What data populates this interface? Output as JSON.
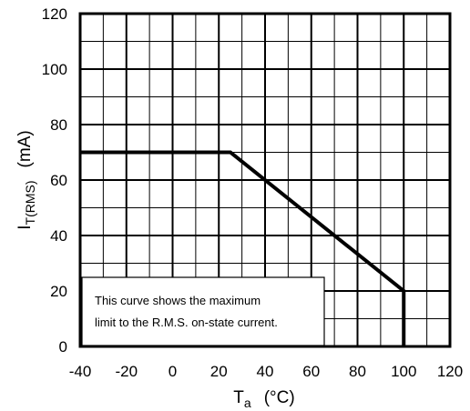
{
  "chart_data": {
    "type": "line",
    "title": "",
    "xlabel": {
      "main": "T",
      "sub": "a",
      "unit": "(°C)"
    },
    "ylabel": {
      "main": "I",
      "sub": "T(RMS)",
      "unit": "(mA)"
    },
    "xlim": [
      -40,
      120
    ],
    "ylim": [
      0,
      120
    ],
    "x_ticks": [
      -40,
      -20,
      0,
      20,
      40,
      60,
      80,
      100,
      120
    ],
    "y_ticks": [
      0,
      20,
      40,
      60,
      80,
      100,
      120
    ],
    "x_tick_labels": [
      "-40",
      "-20",
      "0",
      "20",
      "40",
      "60",
      "80",
      "100",
      "120"
    ],
    "y_tick_labels": [
      "0",
      "20",
      "40",
      "60",
      "80",
      "100",
      "120"
    ],
    "grid": true,
    "series": [
      {
        "x": [
          -40,
          25,
          100,
          100
        ],
        "y": [
          70,
          70,
          20,
          0
        ]
      }
    ],
    "annotation": {
      "lines": [
        "This curve shows the maximum",
        "limit to the R.M.S. on-state current."
      ],
      "placement": "bottom-left"
    }
  }
}
